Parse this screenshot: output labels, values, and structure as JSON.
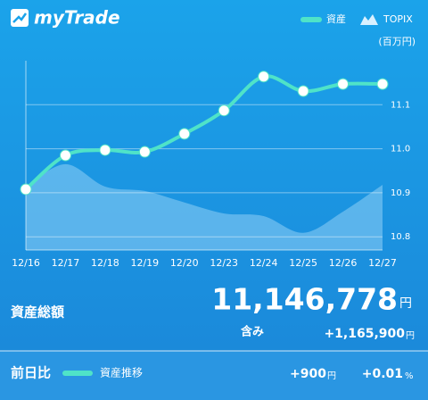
{
  "app": {
    "logo": "myTrade"
  },
  "chart_data": {
    "type": "line",
    "unit": "(百万円)",
    "categories": [
      "12/16",
      "12/17",
      "12/18",
      "12/19",
      "12/20",
      "12/23",
      "12/24",
      "12/25",
      "12/26",
      "12/27"
    ],
    "series": [
      {
        "name": "資産",
        "color": "#4fe3c8",
        "values": [
          10.908,
          10.985,
          10.997,
          10.993,
          11.034,
          11.087,
          11.164,
          11.131,
          11.147,
          11.147
        ]
      },
      {
        "name": "TOPIX",
        "color": "#8fd0f5",
        "values": [
          10.914,
          10.965,
          10.914,
          10.904,
          10.878,
          10.853,
          10.847,
          10.809,
          10.857,
          10.918
        ]
      }
    ],
    "ylim": [
      10.77,
      11.2
    ],
    "yticks": [
      10.8,
      10.9,
      {
        "value": 11,
        "label": "11.0"
      },
      11.1
    ],
    "grid": true
  },
  "summary": {
    "total_label": "資産総額",
    "total": "11,146,778",
    "total_unit": "円",
    "gain_label": "含み",
    "gain": "+1,165,900",
    "gain_unit": "円"
  },
  "daily": {
    "label": "前日比",
    "legend": "資産推移",
    "change": "+900",
    "change_unit": "円",
    "percent": "+0.01",
    "percent_unit": "%"
  }
}
